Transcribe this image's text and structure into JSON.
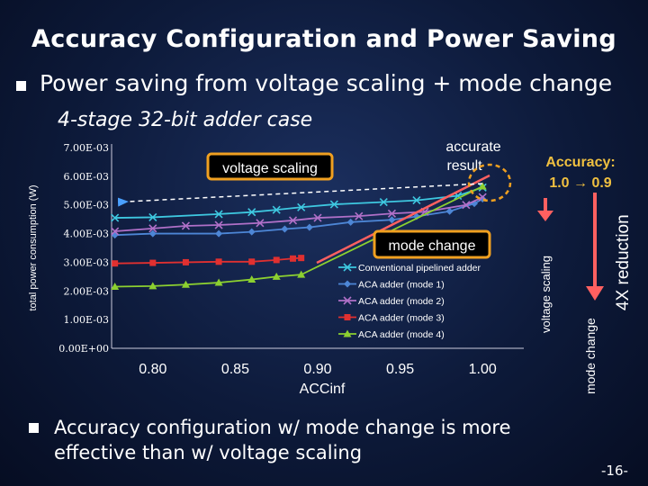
{
  "slide": {
    "title": "Accuracy Configuration and Power Saving",
    "bullet1": "Power saving from voltage scaling + mode change",
    "subtitle": "4-stage 32-bit adder case",
    "bullet2": "Accuracy configuration w/ mode change is more effective than w/ voltage scaling",
    "page_number": "-16-"
  },
  "chart_data": {
    "type": "line",
    "xlabel": "ACCinf",
    "ylabel": "total power consumption (W)",
    "xlim": [
      0.775,
      1.025
    ],
    "ylim": [
      0,
      0.007
    ],
    "x_ticks": [
      "0.80",
      "0.85",
      "0.90",
      "0.95",
      "1.00"
    ],
    "y_ticks": [
      "0.00E+00",
      "1.00E-03",
      "2.00E-03",
      "3.00E-03",
      "4.00E-03",
      "5.00E-03",
      "6.00E-03",
      "7.00E-03"
    ],
    "legend_position": "right",
    "series": [
      {
        "name": "Conventional pipelined adder",
        "color": "#3ec8e0",
        "marker": "x",
        "points": [
          [
            0.777,
            0.00455
          ],
          [
            0.8,
            0.00457
          ],
          [
            0.84,
            0.00468
          ],
          [
            0.86,
            0.00475
          ],
          [
            0.875,
            0.00483
          ],
          [
            0.89,
            0.00492
          ],
          [
            0.91,
            0.00502
          ],
          [
            0.94,
            0.0051
          ],
          [
            0.96,
            0.00516
          ],
          [
            0.985,
            0.00532
          ],
          [
            1.0,
            0.00561
          ]
        ]
      },
      {
        "name": "ACA adder (mode 1)",
        "color": "#4d86d6",
        "marker": "diamond",
        "points": [
          [
            0.777,
            0.00395
          ],
          [
            0.8,
            0.004
          ],
          [
            0.84,
            0.004
          ],
          [
            0.86,
            0.00406
          ],
          [
            0.88,
            0.00416
          ],
          [
            0.895,
            0.00422
          ],
          [
            0.92,
            0.0044
          ],
          [
            0.945,
            0.00448
          ],
          [
            0.96,
            0.0046
          ],
          [
            0.98,
            0.00478
          ],
          [
            0.995,
            0.00505
          ],
          [
            1.0,
            0.00521
          ]
        ]
      },
      {
        "name": "ACA adder (mode 2)",
        "color": "#b070c8",
        "marker": "x",
        "points": [
          [
            0.777,
            0.00408
          ],
          [
            0.8,
            0.00418
          ],
          [
            0.82,
            0.00427
          ],
          [
            0.84,
            0.0043
          ],
          [
            0.865,
            0.00437
          ],
          [
            0.885,
            0.00446
          ],
          [
            0.9,
            0.00455
          ],
          [
            0.925,
            0.00461
          ],
          [
            0.945,
            0.0047
          ],
          [
            0.965,
            0.00476
          ],
          [
            0.99,
            0.005
          ],
          [
            1.0,
            0.00527
          ]
        ]
      },
      {
        "name": "ACA adder (mode 3)",
        "color": "#e03030",
        "marker": "square",
        "points": [
          [
            0.777,
            0.00296
          ],
          [
            0.8,
            0.00298
          ],
          [
            0.82,
            0.003
          ],
          [
            0.84,
            0.00302
          ],
          [
            0.86,
            0.00302
          ],
          [
            0.875,
            0.00308
          ],
          [
            0.885,
            0.00313
          ],
          [
            0.89,
            0.00315
          ]
        ]
      },
      {
        "name": "ACA adder (mode 4)",
        "color": "#8cd030",
        "marker": "triangle",
        "points": [
          [
            0.777,
            0.00215
          ],
          [
            0.8,
            0.00217
          ],
          [
            0.82,
            0.00222
          ],
          [
            0.84,
            0.00229
          ],
          [
            0.86,
            0.0024
          ],
          [
            0.875,
            0.0025
          ],
          [
            0.89,
            0.00257
          ],
          [
            1.0,
            0.00565
          ]
        ]
      }
    ],
    "annotations": {
      "voltage_scaling": "voltage scaling",
      "mode_change": "mode change",
      "accurate_result": "accurate result",
      "accuracy": "Accuracy: 1.0 → 0.9",
      "voltage_scaling_vertical": "voltage scaling",
      "mode_change_vertical": "mode change",
      "reduction": "4X reduction"
    }
  }
}
